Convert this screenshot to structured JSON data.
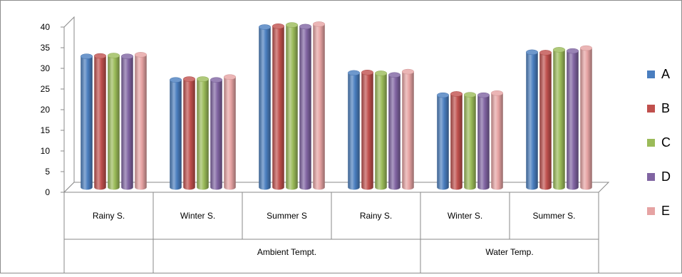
{
  "chart_data": {
    "type": "bar",
    "variant": "3d-cylinder",
    "title": "",
    "xlabel": "",
    "ylabel": "",
    "ylim": [
      0,
      40
    ],
    "yticks": [
      0,
      5,
      10,
      15,
      20,
      25,
      30,
      35,
      40
    ],
    "grid": false,
    "legend_position": "right",
    "categories": [
      "Rainy S.",
      "Winter S.",
      "Summer S",
      "Rainy S.",
      "Winter S.",
      "Summer S."
    ],
    "category_groups": [
      {
        "label": "",
        "categories": [
          "Rainy S."
        ]
      },
      {
        "label": "Ambient Tempt.",
        "categories": [
          "Winter S.",
          "Summer S",
          "Rainy S."
        ]
      },
      {
        "label": "Water Temp.",
        "categories": [
          "Winter S.",
          "Summer S."
        ]
      }
    ],
    "series": [
      {
        "name": "A",
        "color": "#4a7ebf",
        "values": [
          31.7,
          26.0,
          38.8,
          27.7,
          22.3,
          32.7
        ]
      },
      {
        "name": "B",
        "color": "#c0504d",
        "values": [
          31.8,
          26.2,
          39.0,
          27.8,
          22.6,
          32.6
        ]
      },
      {
        "name": "C",
        "color": "#9bbb59",
        "values": [
          31.9,
          26.2,
          39.3,
          27.6,
          22.4,
          33.3
        ]
      },
      {
        "name": "D",
        "color": "#8064a2",
        "values": [
          31.7,
          26.0,
          38.9,
          27.2,
          22.3,
          33.0
        ]
      },
      {
        "name": "E",
        "color": "#e6a3a3",
        "values": [
          32.1,
          26.7,
          39.5,
          28.0,
          22.8,
          33.7
        ]
      }
    ]
  }
}
